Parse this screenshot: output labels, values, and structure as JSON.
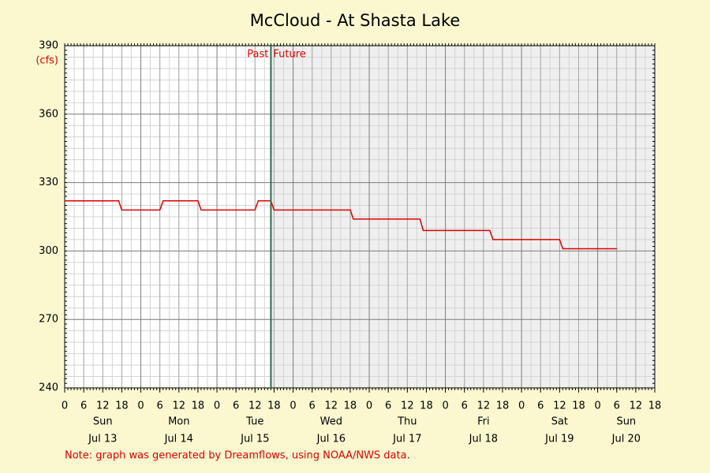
{
  "chart_data": {
    "type": "line",
    "title": "McCloud - At Shasta Lake",
    "y_unit_label": "(cfs)",
    "past_label": "Past",
    "future_label": "Future",
    "now": 65,
    "note": "Note: graph was generated by Dreamflows, using NOAA/NWS data.",
    "x": [
      0,
      17,
      18,
      30,
      31,
      42,
      43,
      60,
      61,
      65,
      66,
      90,
      91,
      112,
      113,
      134,
      135,
      156,
      157,
      174
    ],
    "values": [
      322,
      322,
      318,
      318,
      322,
      322,
      318,
      318,
      322,
      322,
      318,
      318,
      314,
      314,
      309,
      309,
      305,
      305,
      301,
      301
    ],
    "color": "#e00000",
    "xlim": [
      0,
      186
    ],
    "ylim": [
      240,
      390
    ],
    "yticks": [
      240,
      270,
      300,
      330,
      360,
      390
    ],
    "xticks": [
      0,
      6,
      12,
      18,
      {
        "value": 24,
        "label": "0"
      },
      {
        "value": 30,
        "label": "6"
      },
      {
        "value": 36,
        "label": "12"
      },
      {
        "value": 42,
        "label": "18"
      },
      {
        "value": 48,
        "label": "0"
      },
      {
        "value": 54,
        "label": "6"
      },
      {
        "value": 60,
        "label": "12"
      },
      {
        "value": 66,
        "label": "18"
      },
      {
        "value": 72,
        "label": "0"
      },
      {
        "value": 78,
        "label": "6"
      },
      {
        "value": 84,
        "label": "12"
      },
      {
        "value": 90,
        "label": "18"
      },
      {
        "value": 96,
        "label": "0"
      },
      {
        "value": 102,
        "label": "6"
      },
      {
        "value": 108,
        "label": "12"
      },
      {
        "value": 114,
        "label": "18"
      },
      {
        "value": 120,
        "label": "0"
      },
      {
        "value": 126,
        "label": "6"
      },
      {
        "value": 132,
        "label": "12"
      },
      {
        "value": 138,
        "label": "18"
      },
      {
        "value": 144,
        "label": "0"
      },
      {
        "value": 150,
        "label": "6"
      },
      {
        "value": 156,
        "label": "12"
      },
      {
        "value": 162,
        "label": "18"
      },
      {
        "value": 168,
        "label": "0"
      },
      {
        "value": 174,
        "label": "6"
      },
      {
        "value": 180,
        "label": "12"
      },
      {
        "value": 186,
        "label": "18"
      }
    ],
    "day_labels": [
      {
        "value": 12,
        "label": "Sun"
      },
      {
        "value": 36,
        "label": "Mon"
      },
      {
        "value": 60,
        "label": "Tue"
      },
      {
        "value": 84,
        "label": "Wed"
      },
      {
        "value": 108,
        "label": "Thu"
      },
      {
        "value": 132,
        "label": "Fri"
      },
      {
        "value": 156,
        "label": "Sat"
      },
      {
        "value": 177,
        "label": "Sun"
      }
    ],
    "date_labels": [
      {
        "value": 12,
        "label": "Jul 13"
      },
      {
        "value": 36,
        "label": "Jul 14"
      },
      {
        "value": 60,
        "label": "Jul 15"
      },
      {
        "value": 84,
        "label": "Jul 16"
      },
      {
        "value": 108,
        "label": "Jul 17"
      },
      {
        "value": 132,
        "label": "Jul 18"
      },
      {
        "value": 156,
        "label": "Jul 19"
      },
      {
        "value": 177,
        "label": "Jul 20"
      }
    ],
    "grid": true,
    "x_minor_step": 3,
    "y_minor_step": 5
  }
}
